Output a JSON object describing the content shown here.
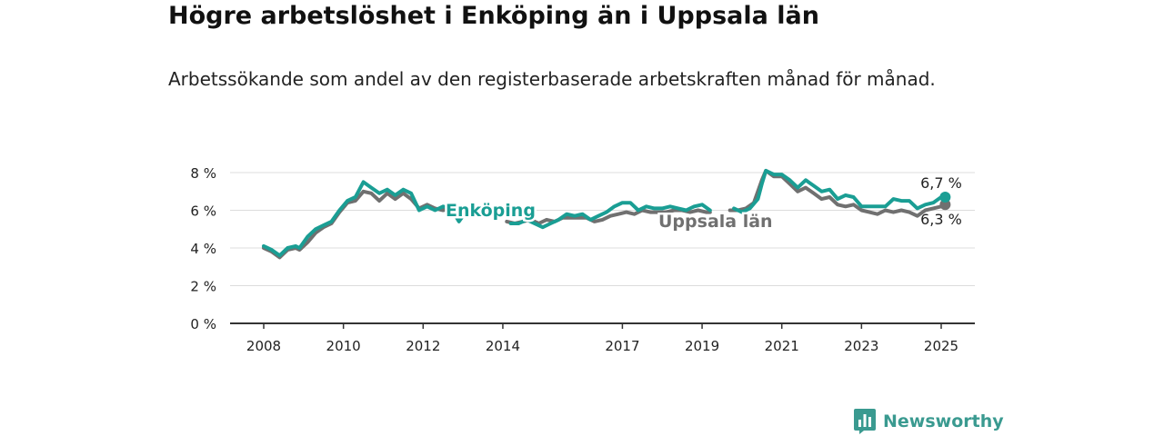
{
  "header": {
    "title": "Högre arbetslöshet i Enköping än i Uppsala län",
    "subtitle": "Arbetssökande som andel av den registerbaserade arbetskraften månad för månad."
  },
  "branding": {
    "name": "Newsworthy",
    "logo_icon": "bar-chart-badge-icon"
  },
  "colors": {
    "enkoping": "#1a9e94",
    "uppsala": "#707070",
    "grid": "#dcdcdc",
    "axis": "#333333",
    "brand": "#3a9a90"
  },
  "chart_data": {
    "type": "line",
    "title": "Högre arbetslöshet i Enköping än i Uppsala län",
    "subtitle": "Arbetssökande som andel av den registerbaserade arbetskraften månad för månad.",
    "xlabel": "",
    "ylabel": "",
    "x_range": [
      2008,
      2025.5
    ],
    "ylim": [
      0,
      8.5
    ],
    "y_ticks": [
      0,
      2,
      4,
      6,
      8
    ],
    "y_tick_labels": [
      "0 %",
      "2 %",
      "4 %",
      "6 %",
      "8 %"
    ],
    "x_ticks": [
      2008,
      2010,
      2012,
      2014,
      2017,
      2019,
      2021,
      2023,
      2025
    ],
    "x_tick_labels": [
      "2008",
      "2010",
      "2012",
      "2014",
      "2017",
      "2019",
      "2021",
      "2023",
      "2025"
    ],
    "grid": "horizontal",
    "series": [
      {
        "name": "Uppsala län",
        "label": "Uppsala län",
        "end_label": "6,3 %",
        "points": [
          [
            2008.0,
            4.0
          ],
          [
            2008.2,
            3.8
          ],
          [
            2008.4,
            3.5
          ],
          [
            2008.6,
            3.9
          ],
          [
            2008.8,
            4.0
          ],
          [
            2008.9,
            3.9
          ],
          [
            2009.1,
            4.3
          ],
          [
            2009.3,
            4.8
          ],
          [
            2009.5,
            5.1
          ],
          [
            2009.7,
            5.3
          ],
          [
            2009.9,
            5.9
          ],
          [
            2010.1,
            6.4
          ],
          [
            2010.3,
            6.5
          ],
          [
            2010.5,
            7.0
          ],
          [
            2010.7,
            6.9
          ],
          [
            2010.9,
            6.5
          ],
          [
            2011.1,
            6.9
          ],
          [
            2011.3,
            6.6
          ],
          [
            2011.5,
            6.9
          ],
          [
            2011.7,
            6.6
          ],
          [
            2011.9,
            6.1
          ],
          [
            2012.1,
            6.3
          ],
          [
            2012.3,
            6.1
          ],
          [
            2012.5,
            6.0
          ],
          [
            2012.7,
            6.1
          ],
          [
            2012.9,
            5.8
          ],
          [
            2013.0,
            6.2
          ],
          [
            2014.1,
            5.4
          ],
          [
            2014.3,
            5.3
          ],
          [
            2014.5,
            5.4
          ],
          [
            2014.7,
            5.5
          ],
          [
            2014.9,
            5.3
          ],
          [
            2015.1,
            5.5
          ],
          [
            2015.3,
            5.4
          ],
          [
            2015.5,
            5.6
          ],
          [
            2015.7,
            5.6
          ],
          [
            2015.9,
            5.6
          ],
          [
            2016.1,
            5.6
          ],
          [
            2016.3,
            5.4
          ],
          [
            2016.5,
            5.5
          ],
          [
            2016.7,
            5.7
          ],
          [
            2016.9,
            5.8
          ],
          [
            2017.1,
            5.9
          ],
          [
            2017.3,
            5.8
          ],
          [
            2017.5,
            6.0
          ],
          [
            2017.7,
            5.9
          ],
          [
            2017.9,
            5.9
          ],
          [
            2018.1,
            5.9
          ],
          [
            2018.3,
            6.0
          ],
          [
            2018.5,
            6.0
          ],
          [
            2018.7,
            5.9
          ],
          [
            2018.9,
            6.0
          ],
          [
            2019.1,
            5.9
          ],
          [
            2019.2,
            5.9
          ],
          [
            2019.7,
            6.0
          ],
          [
            2019.9,
            6.0
          ],
          [
            2020.1,
            6.1
          ],
          [
            2020.3,
            6.4
          ],
          [
            2020.5,
            7.6
          ],
          [
            2020.6,
            8.1
          ],
          [
            2020.8,
            7.8
          ],
          [
            2021.0,
            7.8
          ],
          [
            2021.2,
            7.4
          ],
          [
            2021.4,
            7.0
          ],
          [
            2021.6,
            7.2
          ],
          [
            2021.8,
            6.9
          ],
          [
            2022.0,
            6.6
          ],
          [
            2022.2,
            6.7
          ],
          [
            2022.4,
            6.3
          ],
          [
            2022.6,
            6.2
          ],
          [
            2022.8,
            6.3
          ],
          [
            2023.0,
            6.0
          ],
          [
            2023.2,
            5.9
          ],
          [
            2023.4,
            5.8
          ],
          [
            2023.6,
            6.0
          ],
          [
            2023.8,
            5.9
          ],
          [
            2024.0,
            6.0
          ],
          [
            2024.2,
            5.9
          ],
          [
            2024.4,
            5.7
          ],
          [
            2024.6,
            6.0
          ],
          [
            2024.8,
            6.1
          ],
          [
            2025.0,
            6.2
          ],
          [
            2025.1,
            6.3
          ]
        ]
      },
      {
        "name": "Enköping",
        "label": "Enköping",
        "end_label": "6,7 %",
        "points": [
          [
            2008.0,
            4.1
          ],
          [
            2008.2,
            3.9
          ],
          [
            2008.4,
            3.6
          ],
          [
            2008.6,
            4.0
          ],
          [
            2008.8,
            4.1
          ],
          [
            2008.9,
            4.0
          ],
          [
            2009.1,
            4.6
          ],
          [
            2009.3,
            5.0
          ],
          [
            2009.5,
            5.2
          ],
          [
            2009.7,
            5.4
          ],
          [
            2009.9,
            6.0
          ],
          [
            2010.1,
            6.5
          ],
          [
            2010.3,
            6.7
          ],
          [
            2010.5,
            7.5
          ],
          [
            2010.7,
            7.2
          ],
          [
            2010.9,
            6.9
          ],
          [
            2011.1,
            7.1
          ],
          [
            2011.3,
            6.8
          ],
          [
            2011.5,
            7.1
          ],
          [
            2011.7,
            6.9
          ],
          [
            2011.9,
            6.0
          ],
          [
            2012.1,
            6.2
          ],
          [
            2012.3,
            6.0
          ],
          [
            2012.5,
            6.2
          ],
          [
            2012.7,
            6.1
          ],
          [
            2012.9,
            5.4
          ],
          [
            2013.0,
            5.7
          ],
          [
            2014.2,
            5.3
          ],
          [
            2014.4,
            5.3
          ],
          [
            2014.6,
            5.5
          ],
          [
            2014.8,
            5.3
          ],
          [
            2015.0,
            5.1
          ],
          [
            2015.2,
            5.3
          ],
          [
            2015.4,
            5.5
          ],
          [
            2015.6,
            5.8
          ],
          [
            2015.8,
            5.7
          ],
          [
            2016.0,
            5.8
          ],
          [
            2016.2,
            5.5
          ],
          [
            2016.4,
            5.7
          ],
          [
            2016.6,
            5.9
          ],
          [
            2016.8,
            6.2
          ],
          [
            2017.0,
            6.4
          ],
          [
            2017.2,
            6.4
          ],
          [
            2017.4,
            6.0
          ],
          [
            2017.6,
            6.2
          ],
          [
            2017.8,
            6.1
          ],
          [
            2018.0,
            6.1
          ],
          [
            2018.2,
            6.2
          ],
          [
            2018.4,
            6.1
          ],
          [
            2018.6,
            6.0
          ],
          [
            2018.8,
            6.2
          ],
          [
            2019.0,
            6.3
          ],
          [
            2019.2,
            6.0
          ],
          [
            2019.8,
            6.1
          ],
          [
            2020.0,
            5.9
          ],
          [
            2020.2,
            6.1
          ],
          [
            2020.4,
            6.6
          ],
          [
            2020.5,
            7.4
          ],
          [
            2020.6,
            8.1
          ],
          [
            2020.8,
            7.9
          ],
          [
            2021.0,
            7.9
          ],
          [
            2021.2,
            7.6
          ],
          [
            2021.4,
            7.2
          ],
          [
            2021.6,
            7.6
          ],
          [
            2021.8,
            7.3
          ],
          [
            2022.0,
            7.0
          ],
          [
            2022.2,
            7.1
          ],
          [
            2022.4,
            6.6
          ],
          [
            2022.6,
            6.8
          ],
          [
            2022.8,
            6.7
          ],
          [
            2023.0,
            6.2
          ],
          [
            2023.2,
            6.2
          ],
          [
            2023.4,
            6.2
          ],
          [
            2023.6,
            6.2
          ],
          [
            2023.8,
            6.6
          ],
          [
            2024.0,
            6.5
          ],
          [
            2024.2,
            6.5
          ],
          [
            2024.4,
            6.1
          ],
          [
            2024.6,
            6.3
          ],
          [
            2024.8,
            6.4
          ],
          [
            2025.0,
            6.7
          ],
          [
            2025.1,
            6.7
          ]
        ]
      }
    ]
  }
}
